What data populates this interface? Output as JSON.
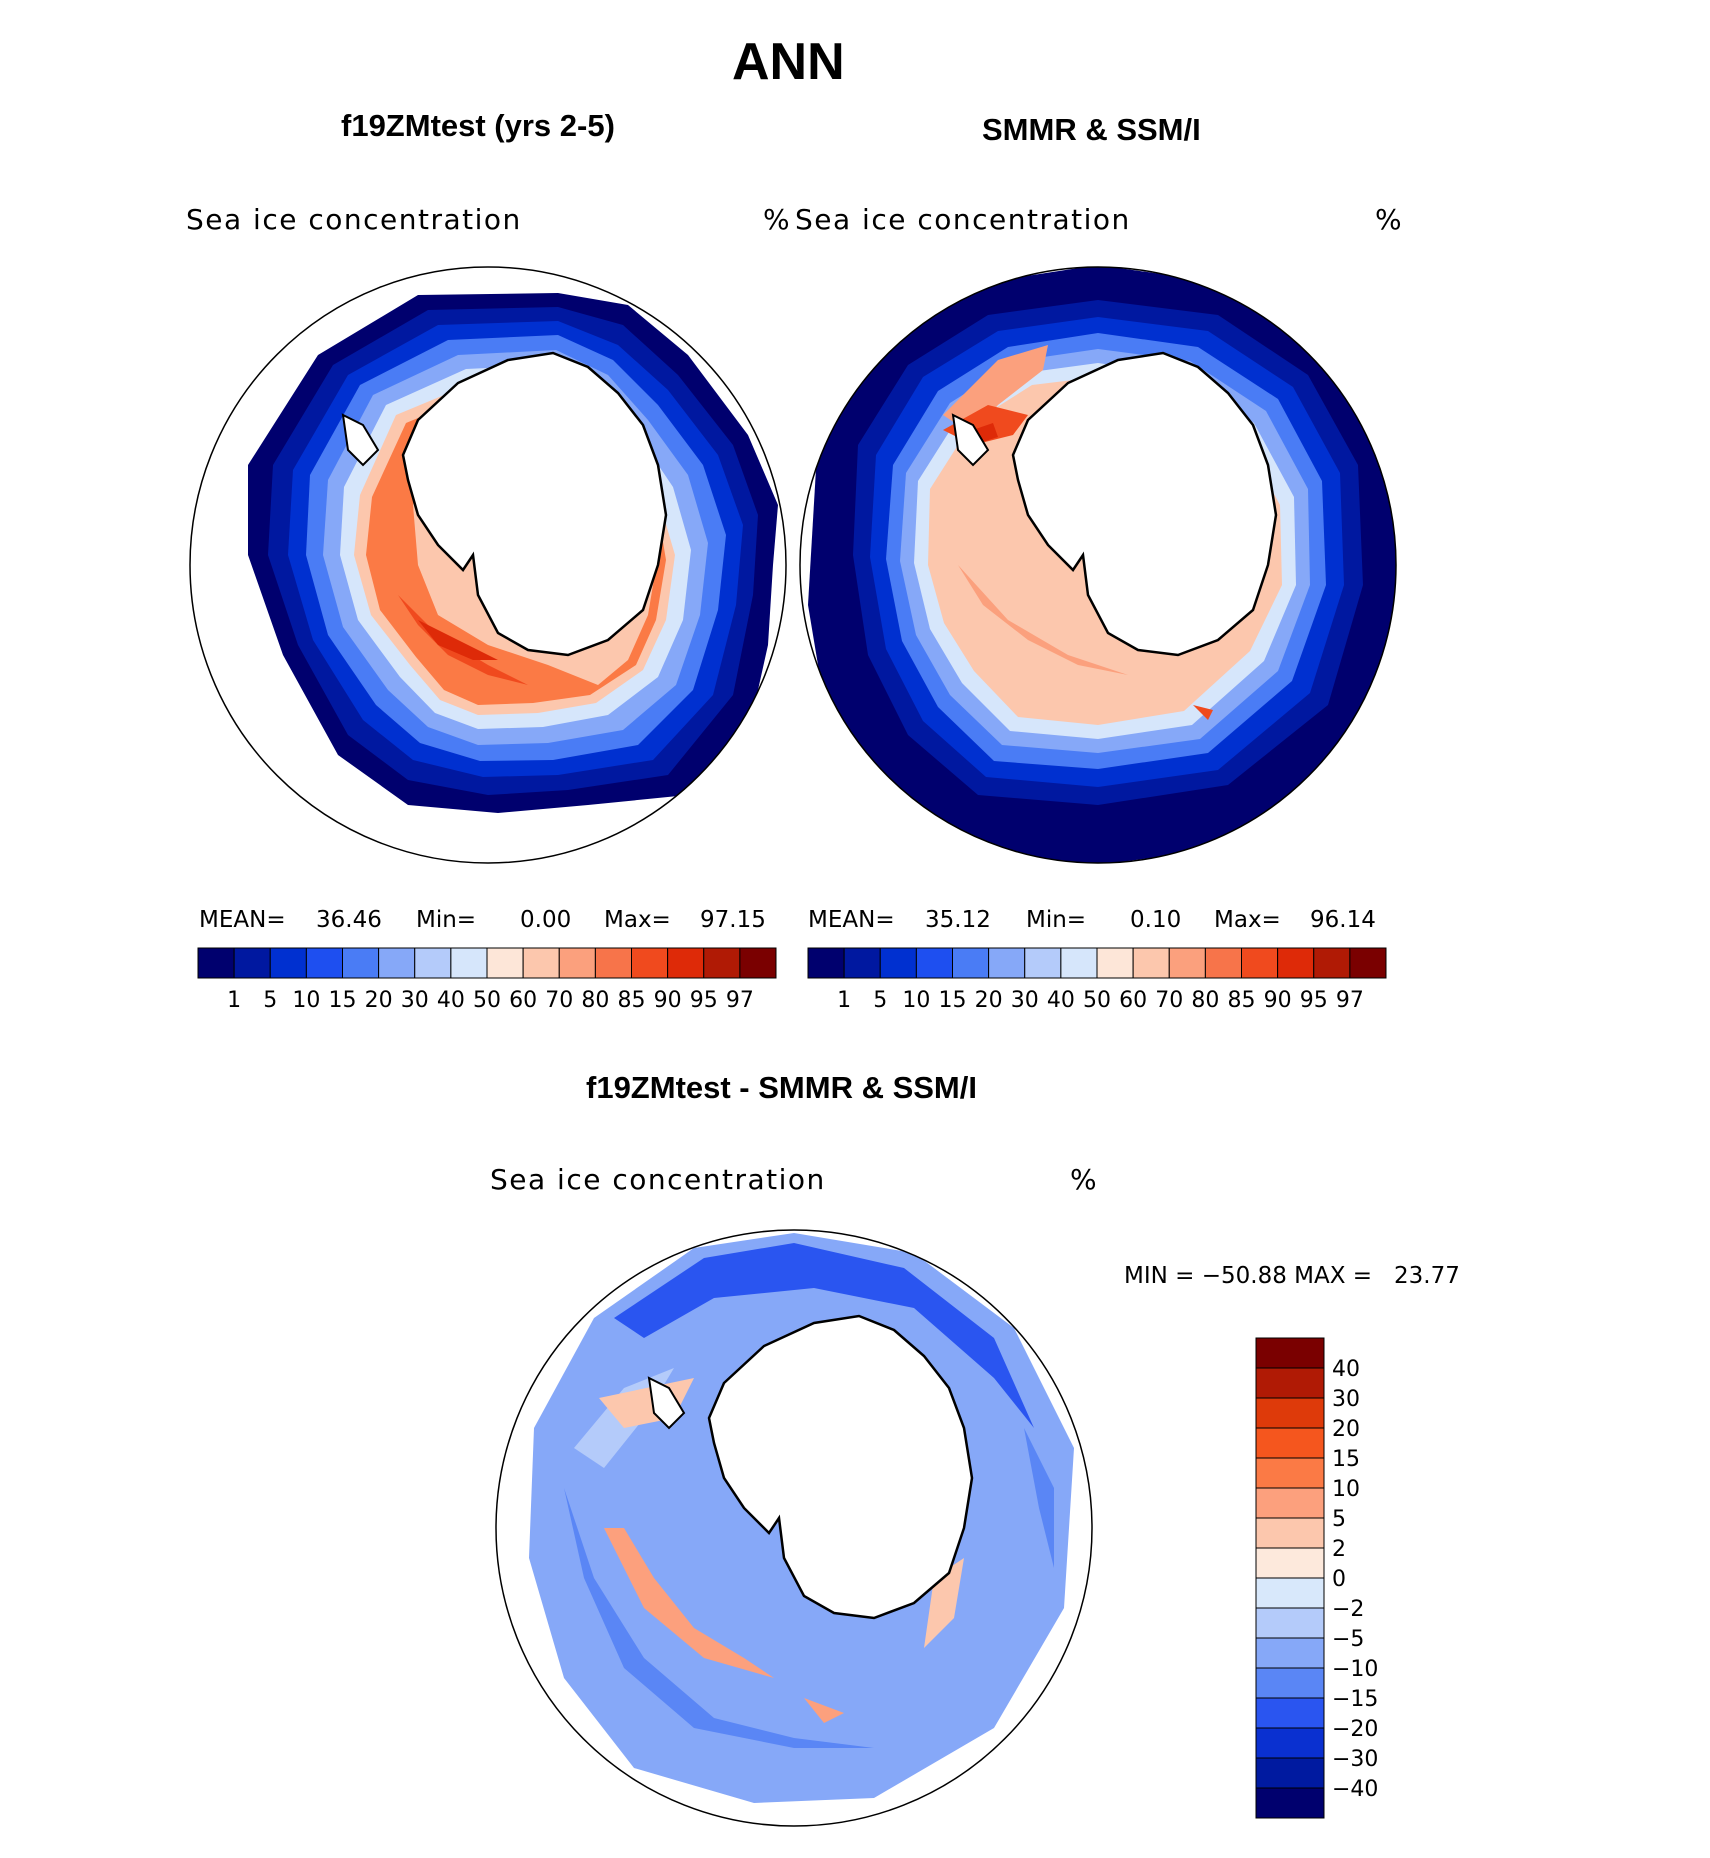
{
  "figure": {
    "title": "ANN"
  },
  "panels": [
    {
      "title": "f19ZMtest (yrs 2-5)",
      "field_label": "Sea ice concentration",
      "units": "%",
      "stats": {
        "mean_label": "MEAN=",
        "mean": "36.46",
        "min_label": "Min=",
        "min": "0.00",
        "max_label": "Max=",
        "max": "97.15"
      }
    },
    {
      "title": "SMMR & SSM/I",
      "field_label": "Sea ice concentration",
      "units": "%",
      "stats": {
        "mean_label": "MEAN=",
        "mean": "35.12",
        "min_label": "Min=",
        "min": "0.10",
        "max_label": "Max=",
        "max": "96.14"
      }
    },
    {
      "title": "f19ZMtest - SMMR & SSM/I",
      "field_label": "Sea ice concentration",
      "units": "%",
      "minmax_text": "MIN = −50.88 MAX =   23.77"
    }
  ],
  "colorbar_concentration": {
    "labels": [
      "1",
      "5",
      "10",
      "15",
      "20",
      "30",
      "40",
      "50",
      "60",
      "70",
      "80",
      "85",
      "90",
      "95",
      "97"
    ],
    "colors": [
      "#00006e",
      "#0018a0",
      "#0030d0",
      "#1e4ff0",
      "#4a7cf5",
      "#86a8f8",
      "#b4cbfa",
      "#d6e6fb",
      "#fde6d8",
      "#fcc7ad",
      "#fba07d",
      "#f7744a",
      "#f04a1e",
      "#de2a08",
      "#b01a05",
      "#7a0000"
    ]
  },
  "colorbar_difference": {
    "labels": [
      "40",
      "30",
      "20",
      "15",
      "10",
      "5",
      "2",
      "0",
      "−2",
      "−5",
      "−10",
      "−15",
      "−20",
      "−30",
      "−40"
    ],
    "colors": [
      "#7a0000",
      "#b01a05",
      "#de3a0a",
      "#f5561e",
      "#fb7a45",
      "#fca07d",
      "#fcc7ad",
      "#fde9dc",
      "#d8e8fb",
      "#b4cbfa",
      "#86a8f8",
      "#5a86f5",
      "#2a55f0",
      "#0a30d0",
      "#001aa0",
      "#00006e"
    ]
  },
  "map_style": {
    "land": "#ffffff",
    "coast": "#000000"
  }
}
